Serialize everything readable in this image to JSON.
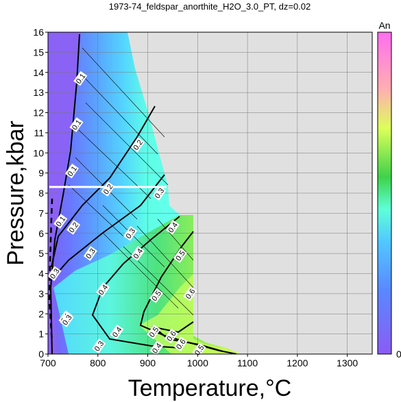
{
  "chart_data": {
    "type": "heatmap",
    "title": "1973-74_feldspar_anorthite_H2O_3.0_PT, dz=0.02",
    "xlabel": "Temperature,°C",
    "ylabel": "Pressure,kbar",
    "xlim": [
      700,
      1350
    ],
    "ylim": [
      0,
      16
    ],
    "xticks": [
      "700",
      "800",
      "900",
      "1000",
      "1100",
      "1200",
      "1300"
    ],
    "yticks": [
      "0",
      "1",
      "2",
      "3",
      "4",
      "5",
      "6",
      "7",
      "8",
      "9",
      "10",
      "11",
      "12",
      "13",
      "14",
      "15",
      "16"
    ],
    "grid": true,
    "colorbar": {
      "label": "An",
      "min": "0",
      "max": "1"
    },
    "no_data_color": "#e0e0e0",
    "contour_levels": [
      0.1,
      0.2,
      0.3,
      0.4,
      0.5,
      0.6
    ],
    "contour_labels": [
      {
        "text": "0.1",
        "x": 765,
        "y": 13.7
      },
      {
        "text": "0.1",
        "x": 757,
        "y": 11.4
      },
      {
        "text": "0.1",
        "x": 748,
        "y": 9.1
      },
      {
        "text": "0.1",
        "x": 725,
        "y": 6.6
      },
      {
        "text": "0.1",
        "x": 735,
        "y": 1.8
      },
      {
        "text": "0.2",
        "x": 880,
        "y": 10.4
      },
      {
        "text": "0.2",
        "x": 820,
        "y": 8.2
      },
      {
        "text": "0.2",
        "x": 751,
        "y": 6.3
      },
      {
        "text": "0.2",
        "x": 802,
        "y": 0.4
      },
      {
        "text": "0.3",
        "x": 923,
        "y": 8.0
      },
      {
        "text": "0.3",
        "x": 865,
        "y": 6.0
      },
      {
        "text": "0.3",
        "x": 785,
        "y": 5.0
      },
      {
        "text": "0.3",
        "x": 713,
        "y": 4.0
      },
      {
        "text": "0.3",
        "x": 738,
        "y": 1.7
      },
      {
        "text": "0.3",
        "x": 802,
        "y": 0.4
      },
      {
        "text": "0.4",
        "x": 950,
        "y": 6.3
      },
      {
        "text": "0.4",
        "x": 880,
        "y": 5.0
      },
      {
        "text": "0.4",
        "x": 810,
        "y": 3.2
      },
      {
        "text": "0.4",
        "x": 838,
        "y": 1.1
      },
      {
        "text": "0.4",
        "x": 918,
        "y": 0.3
      },
      {
        "text": "0.5",
        "x": 965,
        "y": 4.9
      },
      {
        "text": "0.5",
        "x": 917,
        "y": 2.9
      },
      {
        "text": "0.5",
        "x": 912,
        "y": 1.1
      },
      {
        "text": "0.5",
        "x": 1003,
        "y": 0.2
      },
      {
        "text": "0.6",
        "x": 985,
        "y": 3.0
      },
      {
        "text": "0.6",
        "x": 947,
        "y": 0.9
      },
      {
        "text": "0.6",
        "x": 966,
        "y": 0.5
      }
    ]
  }
}
